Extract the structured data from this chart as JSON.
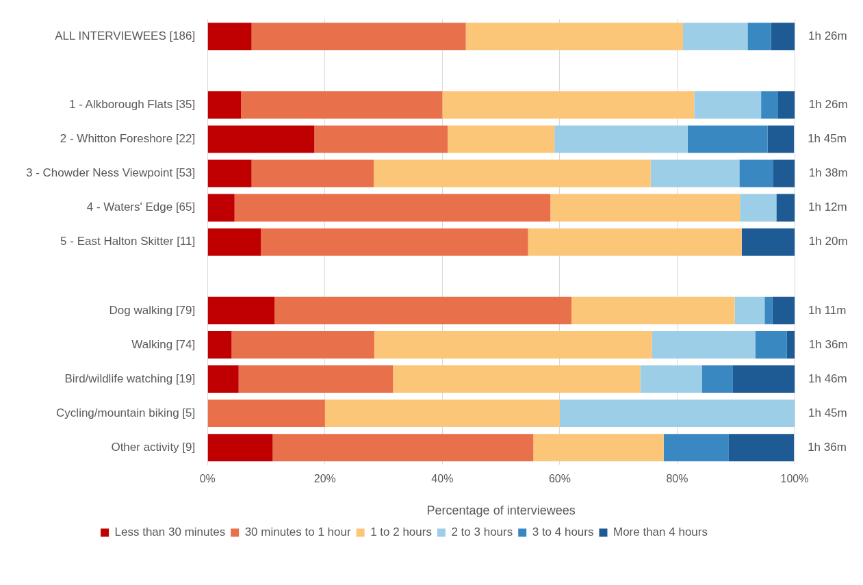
{
  "chart_data": {
    "type": "bar",
    "orientation": "horizontal",
    "stacked": true,
    "xlabel": "Percentage of interviewees",
    "categories": [
      "ALL INTERVIEWEES [186]",
      null,
      "1 - Alkborough Flats [35]",
      "2 - Whitton Foreshore [22]",
      "3 - Chowder Ness Viewpoint [53]",
      "4 - Waters' Edge [65]",
      "5 - East Halton Skitter [11]",
      null,
      "Dog walking [79]",
      "Walking [74]",
      "Bird/wildlife watching [19]",
      "Cycling/mountain biking [5]",
      "Other activity [9]"
    ],
    "series": [
      {
        "name": "Less than 30 minutes",
        "color": "#c00000",
        "values": [
          7.5,
          null,
          5.7,
          18.2,
          7.5,
          4.6,
          9.1,
          null,
          11.4,
          4.1,
          5.3,
          0,
          11.1
        ]
      },
      {
        "name": "30 minutes to 1 hour",
        "color": "#e8704a",
        "values": [
          36.5,
          null,
          34.3,
          22.7,
          20.8,
          53.8,
          45.5,
          null,
          50.6,
          24.3,
          26.3,
          20,
          44.4
        ]
      },
      {
        "name": "1 to 2 hours",
        "color": "#fbc677",
        "values": [
          37,
          null,
          42.9,
          18.2,
          47.2,
          32.3,
          36.4,
          null,
          27.8,
          47.3,
          42.1,
          40,
          22.2
        ]
      },
      {
        "name": "2 to 3 hours",
        "color": "#9dcee7",
        "values": [
          11,
          null,
          11.4,
          22.7,
          15.1,
          6.2,
          0,
          null,
          5.1,
          17.6,
          10.5,
          40,
          0
        ]
      },
      {
        "name": "3 to 4 hours",
        "color": "#3a88c2",
        "values": [
          4,
          null,
          2.9,
          13.6,
          5.7,
          0,
          0,
          null,
          1.3,
          5.4,
          5.3,
          0,
          11.1
        ]
      },
      {
        "name": "More than 4 hours",
        "color": "#1e5a94",
        "values": [
          4,
          null,
          2.9,
          4.5,
          3.8,
          3.1,
          9.1,
          null,
          3.8,
          1.4,
          10.5,
          0,
          11.1
        ]
      }
    ],
    "xlim": [
      0,
      100
    ],
    "xticks": [
      {
        "value": 0,
        "label": "0%"
      },
      {
        "value": 20,
        "label": "20%"
      },
      {
        "value": 40,
        "label": "40%"
      },
      {
        "value": 60,
        "label": "60%"
      },
      {
        "value": 80,
        "label": "80%"
      },
      {
        "value": 100,
        "label": "100%"
      }
    ],
    "grid": "x",
    "legend": "bottom",
    "totals": [
      "1h 26m",
      null,
      "1h 26m",
      "1h 45m",
      "1h 38m",
      "1h 12m",
      "1h 20m",
      null,
      "1h 11m",
      "1h 36m",
      "1h 46m",
      "1h 45m",
      "1h 36m"
    ]
  }
}
